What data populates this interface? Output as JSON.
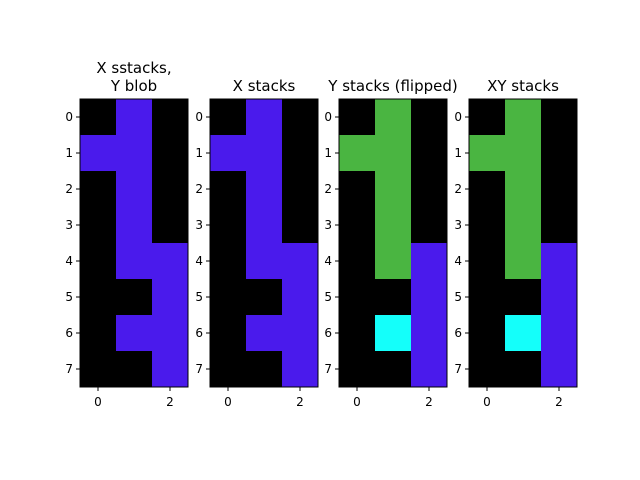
{
  "chart_data": [
    {
      "type": "heatmap",
      "title": [
        "X sstacks,",
        "Y blob"
      ],
      "xticks": [
        0,
        2
      ],
      "yticks": [
        0,
        1,
        2,
        3,
        4,
        5,
        6,
        7
      ],
      "colors": {
        "K": "#000000",
        "P": "#4a1aec",
        "G": "#4ab541",
        "C": "#14fffa"
      },
      "grid": [
        "KPK",
        "PPK",
        "KPK",
        "KPK",
        "KPP",
        "KKP",
        "KPP",
        "KKP"
      ]
    },
    {
      "type": "heatmap",
      "title": [
        "X stacks"
      ],
      "xticks": [
        0,
        2
      ],
      "yticks": [
        0,
        1,
        2,
        3,
        4,
        5,
        6,
        7
      ],
      "colors": {
        "K": "#000000",
        "P": "#4a1aec",
        "G": "#4ab541",
        "C": "#14fffa"
      },
      "grid": [
        "KPK",
        "PPK",
        "KPK",
        "KPK",
        "KPP",
        "KKP",
        "KPP",
        "KKP"
      ]
    },
    {
      "type": "heatmap",
      "title": [
        "Y stacks (flipped)"
      ],
      "xticks": [
        0,
        2
      ],
      "yticks": [
        0,
        1,
        2,
        3,
        4,
        5,
        6,
        7
      ],
      "colors": {
        "K": "#000000",
        "P": "#4a1aec",
        "G": "#4ab541",
        "C": "#14fffa"
      },
      "grid": [
        "KGK",
        "GGK",
        "KGK",
        "KGK",
        "KGP",
        "KKP",
        "KCP",
        "KKP"
      ]
    },
    {
      "type": "heatmap",
      "title": [
        "XY stacks"
      ],
      "xticks": [
        0,
        2
      ],
      "yticks": [
        0,
        1,
        2,
        3,
        4,
        5,
        6,
        7
      ],
      "colors": {
        "K": "#000000",
        "P": "#4a1aec",
        "G": "#4ab541",
        "C": "#14fffa"
      },
      "grid": [
        "KGK",
        "GGK",
        "KGK",
        "KGK",
        "KGP",
        "KKP",
        "KCP",
        "KKP"
      ]
    }
  ]
}
